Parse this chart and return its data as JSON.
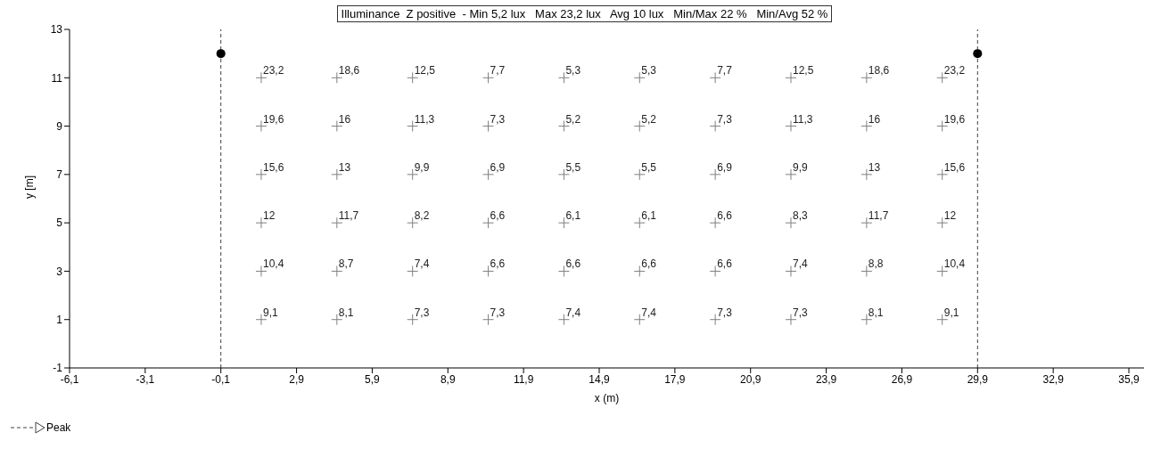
{
  "chart_data": {
    "type": "scatter",
    "title": "Illuminance  Z positive  - Min 5,2 lux   Max 23,2 lux   Avg 10 lux   Min/Max 22 %   Min/Avg 52 %",
    "xlabel": "x (m)",
    "ylabel": "y [m]",
    "x": [
      1.5,
      4.5,
      7.5,
      10.5,
      13.5,
      16.5,
      19.5,
      22.5,
      25.5,
      28.5,
      1.5,
      4.5,
      7.5,
      10.5,
      13.5,
      16.5,
      19.5,
      22.5,
      25.5,
      28.5,
      1.5,
      4.5,
      7.5,
      10.5,
      13.5,
      16.5,
      19.5,
      22.5,
      25.5,
      28.5,
      1.5,
      4.5,
      7.5,
      10.5,
      13.5,
      16.5,
      19.5,
      22.5,
      25.5,
      28.5,
      1.5,
      4.5,
      7.5,
      10.5,
      13.5,
      16.5,
      19.5,
      22.5,
      25.5,
      28.5,
      1.5,
      4.5,
      7.5,
      10.5,
      13.5,
      16.5,
      19.5,
      22.5,
      25.5,
      28.5
    ],
    "series": [
      {
        "color": "#808080",
        "marker": "cross",
        "values": [
          11,
          11,
          11,
          11,
          11,
          11,
          11,
          11,
          11,
          11,
          9,
          9,
          9,
          9,
          9,
          9,
          9,
          9,
          9,
          9,
          7,
          7,
          7,
          7,
          7,
          7,
          7,
          7,
          7,
          7,
          5,
          5,
          5,
          5,
          5,
          5,
          5,
          5,
          5,
          5,
          3,
          3,
          3,
          3,
          3,
          3,
          3,
          3,
          3,
          3,
          1,
          1,
          1,
          1,
          1,
          1,
          1,
          1,
          1,
          1
        ]
      },
      {
        "color": "#000000",
        "marker": "circle",
        "x": [
          -0.1,
          29.9
        ],
        "values": [
          12,
          12
        ]
      }
    ],
    "annotations": [
      {
        "text": "23,2",
        "x": 1.5,
        "y": 11
      },
      {
        "text": "18,6",
        "x": 4.5,
        "y": 11
      },
      {
        "text": "12,5",
        "x": 7.5,
        "y": 11
      },
      {
        "text": "7,7",
        "x": 10.5,
        "y": 11
      },
      {
        "text": "5,3",
        "x": 13.5,
        "y": 11
      },
      {
        "text": "5,3",
        "x": 16.5,
        "y": 11
      },
      {
        "text": "7,7",
        "x": 19.5,
        "y": 11
      },
      {
        "text": "12,5",
        "x": 22.5,
        "y": 11
      },
      {
        "text": "18,6",
        "x": 25.5,
        "y": 11
      },
      {
        "text": "23,2",
        "x": 28.5,
        "y": 11
      },
      {
        "text": "19,6",
        "x": 1.5,
        "y": 9
      },
      {
        "text": "16",
        "x": 4.5,
        "y": 9
      },
      {
        "text": "11,3",
        "x": 7.5,
        "y": 9
      },
      {
        "text": "7,3",
        "x": 10.5,
        "y": 9
      },
      {
        "text": "5,2",
        "x": 13.5,
        "y": 9
      },
      {
        "text": "5,2",
        "x": 16.5,
        "y": 9
      },
      {
        "text": "7,3",
        "x": 19.5,
        "y": 9
      },
      {
        "text": "11,3",
        "x": 22.5,
        "y": 9
      },
      {
        "text": "16",
        "x": 25.5,
        "y": 9
      },
      {
        "text": "19,6",
        "x": 28.5,
        "y": 9
      },
      {
        "text": "15,6",
        "x": 1.5,
        "y": 7
      },
      {
        "text": "13",
        "x": 4.5,
        "y": 7
      },
      {
        "text": "9,9",
        "x": 7.5,
        "y": 7
      },
      {
        "text": "6,9",
        "x": 10.5,
        "y": 7
      },
      {
        "text": "5,5",
        "x": 13.5,
        "y": 7
      },
      {
        "text": "5,5",
        "x": 16.5,
        "y": 7
      },
      {
        "text": "6,9",
        "x": 19.5,
        "y": 7
      },
      {
        "text": "9,9",
        "x": 22.5,
        "y": 7
      },
      {
        "text": "13",
        "x": 25.5,
        "y": 7
      },
      {
        "text": "15,6",
        "x": 28.5,
        "y": 7
      },
      {
        "text": "12",
        "x": 1.5,
        "y": 5
      },
      {
        "text": "11,7",
        "x": 4.5,
        "y": 5
      },
      {
        "text": "8,2",
        "x": 7.5,
        "y": 5
      },
      {
        "text": "6,6",
        "x": 10.5,
        "y": 5
      },
      {
        "text": "6,1",
        "x": 13.5,
        "y": 5
      },
      {
        "text": "6,1",
        "x": 16.5,
        "y": 5
      },
      {
        "text": "6,6",
        "x": 19.5,
        "y": 5
      },
      {
        "text": "8,3",
        "x": 22.5,
        "y": 5
      },
      {
        "text": "11,7",
        "x": 25.5,
        "y": 5
      },
      {
        "text": "12",
        "x": 28.5,
        "y": 5
      },
      {
        "text": "10,4",
        "x": 1.5,
        "y": 3
      },
      {
        "text": "8,7",
        "x": 4.5,
        "y": 3
      },
      {
        "text": "7,4",
        "x": 7.5,
        "y": 3
      },
      {
        "text": "6,6",
        "x": 10.5,
        "y": 3
      },
      {
        "text": "6,6",
        "x": 13.5,
        "y": 3
      },
      {
        "text": "6,6",
        "x": 16.5,
        "y": 3
      },
      {
        "text": "6,6",
        "x": 19.5,
        "y": 3
      },
      {
        "text": "7,4",
        "x": 22.5,
        "y": 3
      },
      {
        "text": "8,8",
        "x": 25.5,
        "y": 3
      },
      {
        "text": "10,4",
        "x": 28.5,
        "y": 3
      },
      {
        "text": "9,1",
        "x": 1.5,
        "y": 1
      },
      {
        "text": "8,1",
        "x": 4.5,
        "y": 1
      },
      {
        "text": "7,3",
        "x": 7.5,
        "y": 1
      },
      {
        "text": "7,3",
        "x": 10.5,
        "y": 1
      },
      {
        "text": "7,4",
        "x": 13.5,
        "y": 1
      },
      {
        "text": "7,4",
        "x": 16.5,
        "y": 1
      },
      {
        "text": "7,3",
        "x": 19.5,
        "y": 1
      },
      {
        "text": "7,3",
        "x": 22.5,
        "y": 1
      },
      {
        "text": "8,1",
        "x": 25.5,
        "y": 1
      },
      {
        "text": "9,1",
        "x": 28.5,
        "y": 1
      },
      "Peak"
    ],
    "ref_lines": [
      {
        "axis": "x",
        "value": -0.1,
        "color": "#404040",
        "line_style": "dashed"
      },
      {
        "axis": "x",
        "value": 29.9,
        "color": "#404040",
        "line_style": "dashed"
      }
    ],
    "xlim": [
      -6.1,
      36.5
    ],
    "xticks": [
      {
        "value": -6.1,
        "label": "-6,1"
      },
      {
        "value": -3.1,
        "label": "-3,1"
      },
      {
        "value": -0.1,
        "label": "-0,1"
      },
      {
        "value": 2.9,
        "label": "2,9"
      },
      {
        "value": 5.9,
        "label": "5,9"
      },
      {
        "value": 8.9,
        "label": "8,9"
      },
      {
        "value": 11.9,
        "label": "11,9"
      },
      {
        "value": 14.9,
        "label": "14,9"
      },
      {
        "value": 17.9,
        "label": "17,9"
      },
      {
        "value": 20.9,
        "label": "20,9"
      },
      {
        "value": 23.9,
        "label": "23,9"
      },
      {
        "value": 26.9,
        "label": "26,9"
      },
      {
        "value": 29.9,
        "label": "29,9"
      },
      {
        "value": 32.9,
        "label": "32,9"
      },
      {
        "value": 35.9,
        "label": "35,9"
      }
    ],
    "ylim": [
      -1,
      13
    ],
    "yticks": [
      -1,
      1,
      3,
      5,
      7,
      9,
      11,
      13
    ]
  }
}
